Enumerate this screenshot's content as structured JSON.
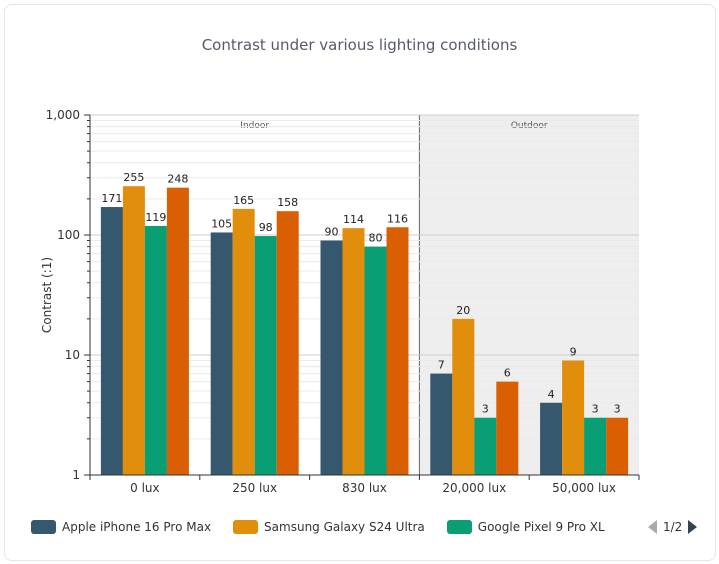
{
  "chart_data": {
    "type": "bar",
    "title": "Contrast under various lighting conditions",
    "ylabel": "Contrast (:1)",
    "xlabel": "",
    "yscale": "log",
    "ylim": [
      1,
      1000
    ],
    "yticks": [
      "1",
      "10",
      "100",
      "1,000"
    ],
    "categories": [
      "0 lux",
      "250 lux",
      "830 lux",
      "20,000 lux",
      "50,000 lux"
    ],
    "regions": [
      {
        "label": "Indoor",
        "categories": [
          "0 lux",
          "250 lux",
          "830 lux"
        ],
        "shaded": false
      },
      {
        "label": "Outdoor",
        "categories": [
          "20,000 lux",
          "50,000 lux"
        ],
        "shaded": true
      }
    ],
    "series": [
      {
        "name": "Apple iPhone 16 Pro Max",
        "color": "#36586e",
        "values": [
          171,
          105,
          90,
          7,
          4
        ]
      },
      {
        "name": "Samsung Galaxy S24 Ultra",
        "color": "#e08e0b",
        "values": [
          255,
          165,
          114,
          20,
          9
        ]
      },
      {
        "name": "Google Pixel 9 Pro XL",
        "color": "#0a9e74",
        "values": [
          119,
          98,
          80,
          3,
          3
        ]
      },
      {
        "name": "",
        "color": "#d95f02",
        "values": [
          248,
          158,
          116,
          6,
          3
        ]
      }
    ],
    "legend_position": "bottom-left",
    "grid": true
  },
  "legend_pager": {
    "text": "1/2"
  }
}
